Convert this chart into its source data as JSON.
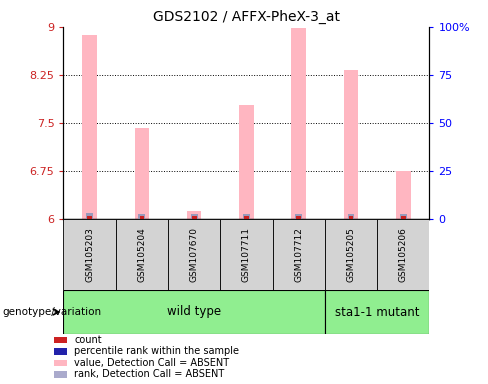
{
  "title": "GDS2102 / AFFX-PheX-3_at",
  "samples": [
    "GSM105203",
    "GSM105204",
    "GSM107670",
    "GSM107711",
    "GSM107712",
    "GSM105205",
    "GSM105206"
  ],
  "pink_bar_top": [
    8.87,
    7.42,
    6.12,
    7.78,
    8.98,
    8.32,
    6.75
  ],
  "blue_bar_top": [
    6.09,
    6.08,
    6.08,
    6.08,
    6.08,
    6.08,
    6.07
  ],
  "red_bar_top": [
    6.04,
    6.04,
    6.04,
    6.04,
    6.04,
    6.04,
    6.04
  ],
  "bar_bottom": 6.0,
  "ylim_left": [
    6.0,
    9.0
  ],
  "ylim_right": [
    0,
    100
  ],
  "yticks_left": [
    6,
    6.75,
    7.5,
    8.25,
    9
  ],
  "yticks_right": [
    0,
    25,
    50,
    75,
    100
  ],
  "ytick_labels_left": [
    "6",
    "6.75",
    "7.5",
    "8.25",
    "9"
  ],
  "ytick_labels_right": [
    "0",
    "25",
    "50",
    "75",
    "100%"
  ],
  "grid_lines": [
    6.75,
    7.5,
    8.25
  ],
  "pink_color": "#FFB6C1",
  "blue_color": "#9999BB",
  "red_color": "#CC2222",
  "wild_type_label": "wild type",
  "mutant_label": "sta1-1 mutant",
  "genotype_label": "genotype/variation",
  "legend_items": [
    {
      "label": "count",
      "color": "#CC2222"
    },
    {
      "label": "percentile rank within the sample",
      "color": "#2222AA"
    },
    {
      "label": "value, Detection Call = ABSENT",
      "color": "#FFB6C1"
    },
    {
      "label": "rank, Detection Call = ABSENT",
      "color": "#AAAACC"
    }
  ],
  "pink_bar_width": 0.28,
  "blue_bar_width": 0.13,
  "red_bar_width": 0.09,
  "wt_count": 5,
  "mutant_count": 2
}
